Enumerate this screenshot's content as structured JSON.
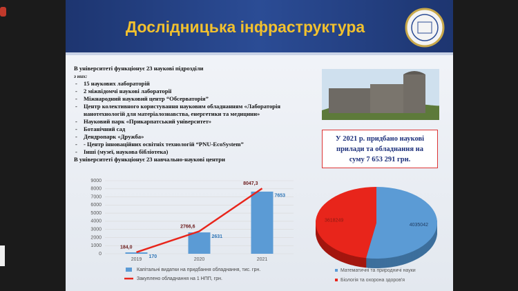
{
  "slide": {
    "title": "Дослідницька інфраструктура",
    "intro": "В університеті функціонує 23 наукові підрозділи",
    "subintro": "з них:",
    "items": [
      "15 наукових лабораторій",
      "2 міжвідомчі наукові лабораторії",
      "Міжнародний науковий центр “Обсерваторія”",
      "Центр колективного користування науковим обладнанням «Лабораторія нанотехнологій для матеріалознавства, енергетики та медицини»",
      "Науковий парк «Прикарпатський університет»",
      "Ботанічний сад",
      "Дендропарк «Дружба»",
      "- Центр інноваційних освітніх технологій “PNU-EcoSystem”",
      "Інші (музеї, наукова бібліотека)"
    ],
    "closing": "В університеті функціонує 23 навчально-наукові центри",
    "note": "У 2021 р. придбано наукові прилади та обладнання на суму 7 653 291 грн."
  },
  "chart_data": [
    {
      "type": "bar",
      "categories": [
        "2019",
        "2020",
        "2021"
      ],
      "ylim": [
        0,
        9000
      ],
      "yticks": [
        0,
        1000,
        2000,
        3000,
        4000,
        5000,
        6000,
        7000,
        8000,
        9000
      ],
      "legend": "bottom",
      "series": [
        {
          "name": "Капітальні видатки на придбання обладнання, тис. грн.",
          "type": "bar",
          "color": "#5b9bd5",
          "values": [
            170,
            2631,
            7653
          ]
        },
        {
          "name": "Закуплено обладнання на 1 НПП, грн.",
          "type": "line",
          "color": "#e8251b",
          "values": [
            184.0,
            2766.6,
            8047.3
          ],
          "value_labels": [
            "184,0",
            "2766,6",
            "8047,3"
          ]
        }
      ]
    },
    {
      "type": "pie",
      "categories": [
        "Математичні та природничі науки",
        "Біологія та охорона здоров'я"
      ],
      "values": [
        4035042,
        3618249
      ],
      "colors": [
        "#5b9bd5",
        "#e8251b"
      ],
      "legend": "bottom"
    }
  ]
}
